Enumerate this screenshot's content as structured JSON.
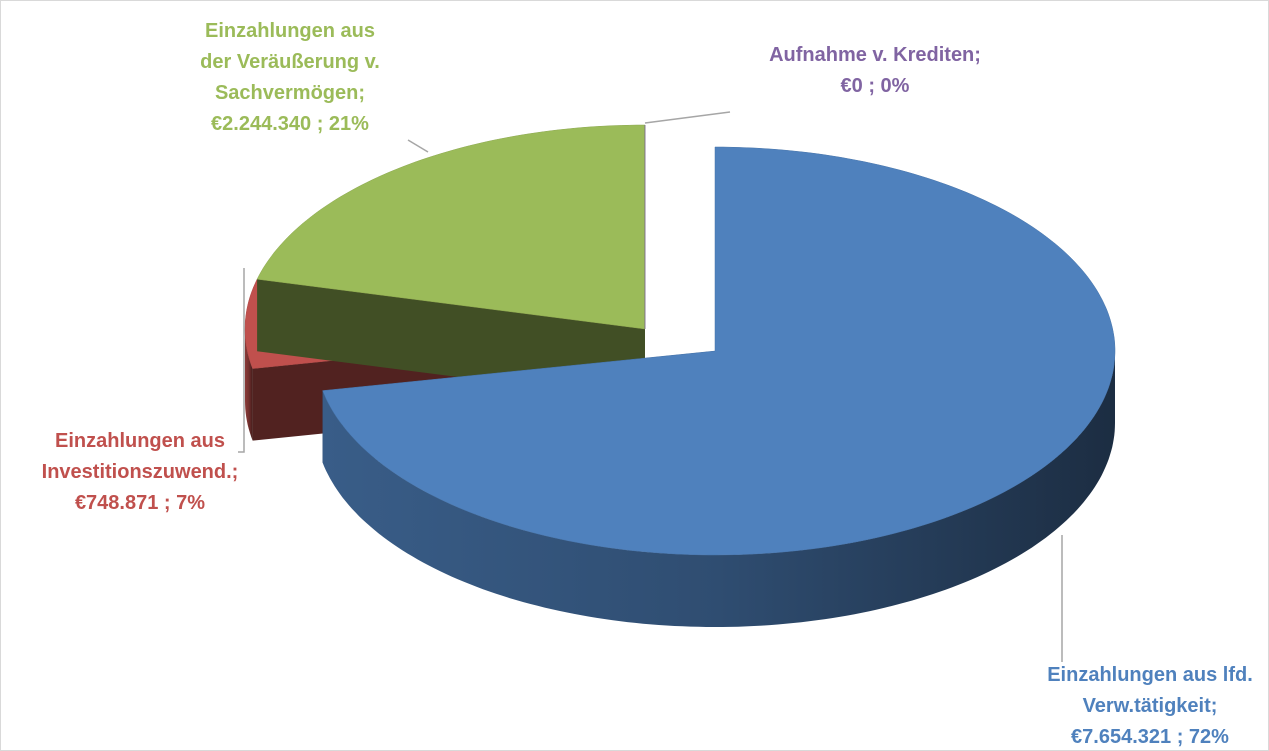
{
  "chart_data": {
    "type": "pie3d",
    "categories": [
      "Einzahlungen aus lfd. Verw.tätigkeit;",
      "Einzahlungen aus Investitionszuwend.;",
      "Einzahlungen aus der Veräußerung v. Sachvermögen;",
      "Aufnahme v. Krediten;"
    ],
    "values": [
      7654321,
      748871,
      2244340,
      0
    ],
    "value_labels": [
      "€7.654.321 ; 72%",
      "€748.871 ; 7%",
      "€2.244.340 ; 21%",
      "€0 ; 0%"
    ],
    "colors": [
      "#4f81bd",
      "#c0504d",
      "#9bbb59",
      "#8064a2"
    ],
    "exploded": [
      true,
      false,
      false,
      false
    ]
  }
}
